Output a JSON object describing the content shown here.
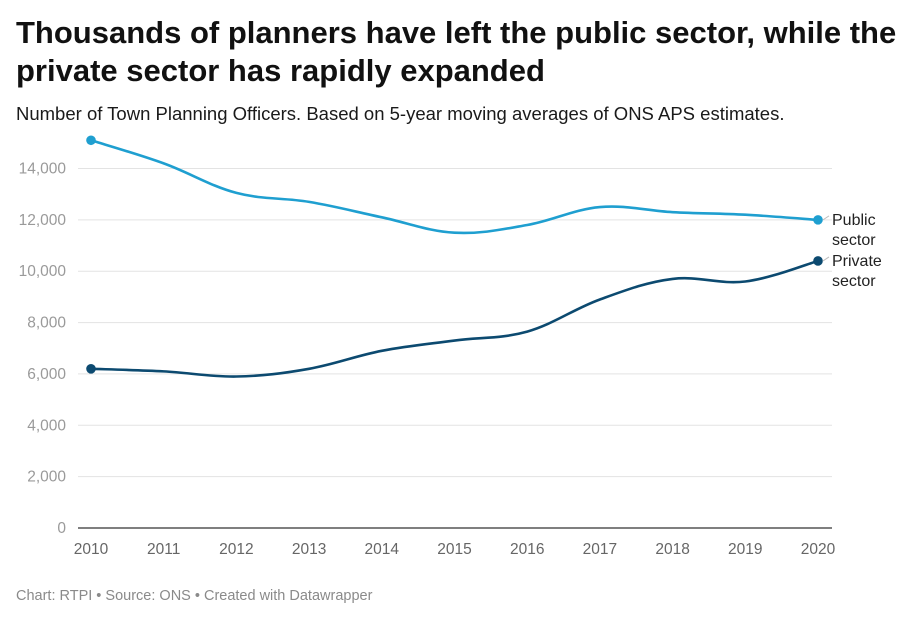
{
  "title": "Thousands of planners have left the public sector, while the private sector has rapidly expanded",
  "subtitle": "Number of Town Planning Officers. Based on 5-year moving averages of ONS APS estimates.",
  "footer": "Chart: RTPI • Source: ONS • Created with Datawrapper",
  "chart_data": {
    "type": "line",
    "x": [
      2010,
      2011,
      2012,
      2013,
      2014,
      2015,
      2016,
      2017,
      2018,
      2019,
      2020
    ],
    "x_tick_labels": [
      "2010",
      "2011",
      "2012",
      "2013",
      "2014",
      "2015",
      "2016",
      "2017",
      "2018",
      "2019",
      "2020"
    ],
    "y_ticks": [
      0,
      2000,
      4000,
      6000,
      8000,
      10000,
      12000,
      14000
    ],
    "y_tick_labels": [
      "0",
      "2,000",
      "4,000",
      "6,000",
      "8,000",
      "10,000",
      "12,000",
      "14,000"
    ],
    "ylim": [
      0,
      15500
    ],
    "grid": true,
    "series": [
      {
        "name": "Public sector",
        "label_lines": [
          "Public",
          "sector"
        ],
        "color": "#1f9fd0",
        "values": [
          15100,
          14200,
          13050,
          12700,
          12100,
          11500,
          11800,
          12500,
          12300,
          12200,
          12000
        ]
      },
      {
        "name": "Private sector",
        "label_lines": [
          "Private",
          "sector"
        ],
        "color": "#0c4a70",
        "values": [
          6200,
          6100,
          5900,
          6200,
          6900,
          7300,
          7650,
          8900,
          9700,
          9600,
          10400
        ]
      }
    ]
  }
}
